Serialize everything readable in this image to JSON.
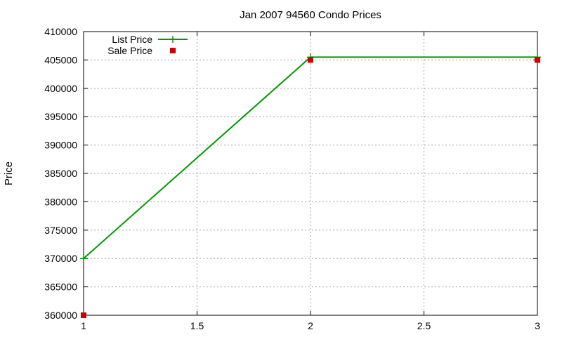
{
  "chart_data": {
    "type": "line",
    "title": "Jan 2007 94560 Condo Prices",
    "xlabel": "",
    "ylabel": "Price",
    "xlim": [
      1,
      3
    ],
    "ylim": [
      360000,
      410000
    ],
    "x_ticks": [
      1,
      1.5,
      2,
      2.5,
      3
    ],
    "x_tick_labels": [
      "1",
      "1.5",
      "2",
      "2.5",
      "3"
    ],
    "y_ticks": [
      360000,
      365000,
      370000,
      375000,
      380000,
      385000,
      390000,
      395000,
      400000,
      405000,
      410000
    ],
    "y_tick_labels": [
      "360000",
      "365000",
      "370000",
      "375000",
      "380000",
      "385000",
      "390000",
      "395000",
      "400000",
      "405000",
      "410000"
    ],
    "grid": true,
    "legend_position": "top-left",
    "series": [
      {
        "name": "List Price",
        "style": "linespoints",
        "marker": "plus",
        "color": "#009900",
        "x": [
          1,
          2,
          3
        ],
        "y": [
          370000,
          405500,
          405500
        ]
      },
      {
        "name": "Sale Price",
        "style": "points",
        "marker": "square",
        "color": "#cc0000",
        "x": [
          1,
          2,
          3
        ],
        "y": [
          360000,
          405000,
          405000
        ]
      }
    ]
  }
}
